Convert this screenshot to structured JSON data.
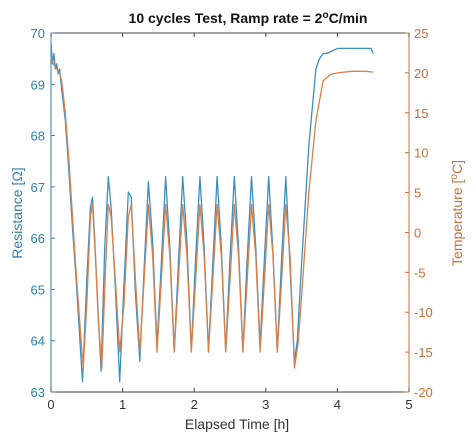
{
  "chart_data": {
    "type": "line",
    "title_main": "10 cycles Test, Ramp rate = 2",
    "title_sup": "o",
    "title_tail": "C/min",
    "xlabel": "Elapsed Time [h]",
    "ylabel_left": "Resistance [Ω]",
    "ylabel_right_main": "Temperature [",
    "ylabel_right_sup": "o",
    "ylabel_right_tail": "C]",
    "xlim": [
      0,
      5
    ],
    "ylim_left": [
      63,
      70
    ],
    "ylim_right": [
      -20,
      25
    ],
    "x_ticks": [
      0,
      1,
      2,
      3,
      4,
      5
    ],
    "left_ticks": [
      63,
      64,
      65,
      66,
      67,
      68,
      69,
      70
    ],
    "right_ticks": [
      -20,
      -15,
      -10,
      -5,
      0,
      5,
      10,
      15,
      20,
      25
    ],
    "grid": false,
    "colors": {
      "resistance": "#3a8fc3",
      "temperature": "#d9804a",
      "left_axis": "#2f7fb5",
      "right_axis": "#c8703a"
    },
    "series": [
      {
        "axis": "left",
        "x": [
          0,
          0.02,
          0.04,
          0.06,
          0.08,
          0.1,
          0.12,
          0.15,
          0.2,
          0.25,
          0.3,
          0.35,
          0.4,
          0.44,
          0.5,
          0.55,
          0.58,
          0.62,
          0.66,
          0.7,
          0.75,
          0.8,
          0.84,
          0.9,
          0.96,
          1.02,
          1.08,
          1.12,
          1.18,
          1.24,
          1.3,
          1.36,
          1.42,
          1.48,
          1.54,
          1.6,
          1.66,
          1.72,
          1.78,
          1.84,
          1.9,
          1.96,
          2.02,
          2.08,
          2.14,
          2.2,
          2.26,
          2.32,
          2.38,
          2.44,
          2.5,
          2.56,
          2.62,
          2.68,
          2.74,
          2.8,
          2.86,
          2.92,
          2.98,
          3.04,
          3.1,
          3.16,
          3.22,
          3.28,
          3.34,
          3.4,
          3.44,
          3.5,
          3.6,
          3.7,
          3.75,
          3.8,
          3.85,
          4.0,
          4.2,
          4.4,
          4.47,
          4.5
        ],
        "y": [
          69.8,
          69.4,
          69.6,
          69.3,
          69.4,
          69.2,
          69.3,
          68.9,
          68.3,
          67.3,
          66.2,
          65.2,
          64.1,
          63.2,
          65.2,
          66.6,
          66.8,
          65.7,
          64.5,
          63.4,
          65.8,
          67.2,
          66.6,
          65.0,
          63.2,
          65.1,
          66.9,
          66.8,
          64.9,
          63.6,
          65.4,
          67.1,
          65.9,
          63.9,
          65.5,
          67.2,
          65.8,
          63.8,
          65.5,
          67.2,
          65.9,
          63.8,
          65.6,
          67.2,
          65.8,
          63.8,
          65.5,
          67.2,
          65.8,
          63.8,
          65.6,
          67.2,
          65.8,
          63.8,
          65.6,
          67.2,
          65.8,
          63.9,
          65.6,
          67.2,
          65.7,
          63.8,
          65.6,
          67.2,
          65.4,
          63.6,
          64.0,
          65.5,
          67.8,
          69.3,
          69.5,
          69.6,
          69.6,
          69.7,
          69.7,
          69.7,
          69.7,
          69.6
        ]
      },
      {
        "axis": "right",
        "x": [
          0,
          0.04,
          0.08,
          0.12,
          0.15,
          0.2,
          0.25,
          0.3,
          0.35,
          0.4,
          0.45,
          0.5,
          0.55,
          0.58,
          0.62,
          0.66,
          0.71,
          0.76,
          0.8,
          0.84,
          0.9,
          0.96,
          1.02,
          1.08,
          1.12,
          1.18,
          1.24,
          1.3,
          1.36,
          1.42,
          1.48,
          1.54,
          1.6,
          1.66,
          1.72,
          1.78,
          1.84,
          1.9,
          1.96,
          2.02,
          2.08,
          2.14,
          2.2,
          2.26,
          2.32,
          2.38,
          2.44,
          2.5,
          2.56,
          2.62,
          2.68,
          2.74,
          2.8,
          2.86,
          2.92,
          2.98,
          3.04,
          3.1,
          3.16,
          3.22,
          3.28,
          3.34,
          3.4,
          3.45,
          3.5,
          3.6,
          3.7,
          3.8,
          3.9,
          4.0,
          4.2,
          4.4,
          4.5
        ],
        "y": [
          22,
          21,
          20.5,
          20,
          19,
          15,
          9,
          2,
          -5,
          -11,
          -17,
          -9,
          2,
          3.5,
          -3,
          -11,
          -17,
          -5,
          3.5,
          2,
          -6,
          -15,
          -9,
          2,
          3.5,
          -6,
          -15,
          -6,
          3.5,
          -3,
          -15,
          -6,
          3.5,
          -3,
          -15,
          -6,
          3.5,
          -3,
          -15,
          -6,
          3.5,
          -3,
          -15,
          -6,
          3.5,
          -3,
          -15,
          -6,
          3.5,
          -3,
          -15,
          -6,
          3.5,
          -3,
          -15,
          -6,
          3.5,
          -3,
          -15,
          -6,
          3.5,
          -3,
          -17,
          -14,
          -8,
          5,
          14,
          19,
          19.8,
          20,
          20.2,
          20.2,
          20.1
        ]
      }
    ]
  }
}
